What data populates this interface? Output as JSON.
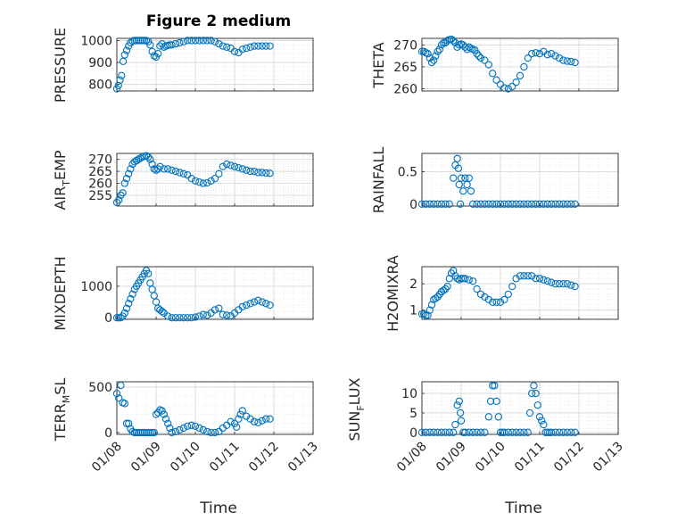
{
  "chart_data": [
    {
      "type": "scatter",
      "id": "pressure",
      "title": "Figure 2 medium",
      "ylabel": "PRESSURE",
      "xlim": [
        0,
        5
      ],
      "ylim": [
        770,
        1010
      ],
      "yticks": [
        800,
        900,
        1000
      ],
      "ytick_labels": [
        "800",
        "900",
        "1000"
      ],
      "xtick_labels": [
        "",
        "",
        "",
        "",
        "",
        ""
      ],
      "x": [
        0.0,
        0.04,
        0.08,
        0.12,
        0.16,
        0.2,
        0.25,
        0.3,
        0.35,
        0.4,
        0.45,
        0.5,
        0.55,
        0.6,
        0.65,
        0.7,
        0.75,
        0.8,
        0.85,
        0.9,
        0.95,
        1.0,
        1.05,
        1.1,
        1.15,
        1.2,
        1.25,
        1.3,
        1.35,
        1.4,
        1.5,
        1.6,
        1.7,
        1.8,
        1.9,
        2.0,
        2.1,
        2.2,
        2.3,
        2.4,
        2.5,
        2.6,
        2.7,
        2.8,
        2.9,
        3.0,
        3.1,
        3.2,
        3.3,
        3.4,
        3.5,
        3.6,
        3.7,
        3.8,
        3.9
      ],
      "y": [
        780,
        795,
        820,
        840,
        905,
        935,
        955,
        975,
        990,
        998,
        1000,
        1000,
        1000,
        1000,
        1000,
        1000,
        1000,
        995,
        980,
        950,
        930,
        925,
        940,
        975,
        985,
        970,
        975,
        978,
        980,
        980,
        985,
        990,
        995,
        1000,
        1000,
        1000,
        1000,
        1000,
        1000,
        1000,
        995,
        985,
        975,
        970,
        965,
        950,
        945,
        960,
        965,
        970,
        975,
        975,
        975,
        975,
        975
      ]
    },
    {
      "type": "scatter",
      "id": "theta",
      "title": "",
      "ylabel": "THETA",
      "xlim": [
        0,
        5
      ],
      "ylim": [
        259.5,
        271.5
      ],
      "yticks": [
        260,
        265,
        270
      ],
      "ytick_labels": [
        "260",
        "265",
        "270"
      ],
      "xtick_labels": [
        "",
        "",
        "",
        "",
        "",
        ""
      ],
      "x": [
        0.0,
        0.05,
        0.1,
        0.15,
        0.2,
        0.25,
        0.3,
        0.35,
        0.4,
        0.45,
        0.5,
        0.55,
        0.6,
        0.65,
        0.7,
        0.75,
        0.8,
        0.85,
        0.9,
        0.95,
        1.0,
        1.05,
        1.1,
        1.15,
        1.2,
        1.25,
        1.3,
        1.35,
        1.4,
        1.45,
        1.5,
        1.6,
        1.7,
        1.8,
        1.9,
        2.0,
        2.1,
        2.2,
        2.3,
        2.4,
        2.5,
        2.6,
        2.7,
        2.8,
        2.9,
        3.0,
        3.1,
        3.2,
        3.3,
        3.4,
        3.5,
        3.6,
        3.7,
        3.8,
        3.9
      ],
      "y": [
        268.5,
        268.5,
        268.2,
        268.0,
        267.0,
        266.0,
        266.5,
        267.5,
        268.5,
        269.0,
        270.0,
        270.5,
        270.5,
        271.0,
        271.2,
        271.3,
        271.0,
        270.5,
        269.5,
        270.0,
        270.2,
        270.0,
        269.5,
        269.0,
        269.5,
        269.2,
        269.0,
        268.8,
        268.0,
        267.5,
        267.0,
        266.5,
        265.5,
        263.5,
        262.0,
        261.0,
        260.2,
        260.0,
        260.5,
        261.5,
        263.0,
        265.0,
        267.0,
        268.0,
        268.2,
        268.0,
        268.5,
        267.8,
        268.0,
        267.5,
        267.0,
        266.5,
        266.3,
        266.2,
        266.0
      ]
    },
    {
      "type": "scatter",
      "id": "air_temp",
      "title": "",
      "ylabel": "AIR_TEMP",
      "xlim": [
        0,
        5
      ],
      "ylim": [
        250.5,
        272.5
      ],
      "yticks": [
        255,
        260,
        265,
        270
      ],
      "ytick_labels": [
        "255",
        "260",
        "265",
        "270"
      ],
      "xtick_labels": [
        "",
        "",
        "",
        "",
        "",
        ""
      ],
      "x": [
        0.0,
        0.05,
        0.1,
        0.15,
        0.2,
        0.25,
        0.3,
        0.35,
        0.4,
        0.45,
        0.5,
        0.55,
        0.6,
        0.65,
        0.7,
        0.75,
        0.8,
        0.85,
        0.9,
        0.95,
        1.0,
        1.05,
        1.1,
        1.2,
        1.3,
        1.4,
        1.5,
        1.6,
        1.7,
        1.8,
        1.9,
        2.0,
        2.1,
        2.2,
        2.3,
        2.4,
        2.5,
        2.6,
        2.7,
        2.8,
        2.9,
        3.0,
        3.1,
        3.2,
        3.3,
        3.4,
        3.5,
        3.6,
        3.7,
        3.8,
        3.9
      ],
      "y": [
        252,
        253,
        255,
        256,
        260,
        262,
        264,
        266,
        268,
        269,
        269.5,
        270,
        270.5,
        271,
        271.3,
        271.5,
        271,
        270,
        268,
        266,
        265.5,
        266,
        267,
        266,
        266,
        265.5,
        265,
        264.5,
        264,
        263.5,
        262,
        261,
        260.5,
        260,
        260.2,
        261,
        262,
        264,
        267,
        268,
        267.5,
        267,
        266.5,
        266,
        265.5,
        265,
        265,
        264.5,
        264.5,
        264.3,
        264.2
      ]
    },
    {
      "type": "scatter",
      "id": "rainfall",
      "title": "",
      "ylabel": "RAINFALL",
      "xlim": [
        0,
        5
      ],
      "ylim": [
        -0.03,
        0.78
      ],
      "yticks": [
        0,
        0.5
      ],
      "ytick_labels": [
        "0",
        "0.5"
      ],
      "xtick_labels": [
        "",
        "",
        "",
        "",
        "",
        ""
      ],
      "x": [
        0.0,
        0.1,
        0.2,
        0.3,
        0.4,
        0.5,
        0.6,
        0.7,
        0.8,
        0.85,
        0.9,
        0.93,
        0.95,
        0.98,
        1.0,
        1.05,
        1.1,
        1.15,
        1.2,
        1.25,
        1.3,
        1.4,
        1.5,
        1.6,
        1.7,
        1.8,
        1.9,
        2.0,
        2.1,
        2.2,
        2.3,
        2.4,
        2.5,
        2.6,
        2.7,
        2.8,
        2.9,
        3.0,
        3.1,
        3.2,
        3.3,
        3.4,
        3.5,
        3.6,
        3.7,
        3.8,
        3.9
      ],
      "y": [
        0,
        0,
        0,
        0,
        0,
        0,
        0,
        0,
        0.4,
        0.6,
        0.7,
        0.55,
        0.3,
        0,
        0.4,
        0.2,
        0.4,
        0.3,
        0.4,
        0.2,
        0,
        0,
        0,
        0,
        0,
        0,
        0,
        0,
        0,
        0,
        0,
        0,
        0,
        0,
        0,
        0,
        0,
        0,
        0,
        0,
        0,
        0,
        0,
        0,
        0,
        0,
        0
      ]
    },
    {
      "type": "scatter",
      "id": "mixdepth",
      "title": "",
      "ylabel": "MIXDEPTH",
      "xlim": [
        0,
        5
      ],
      "ylim": [
        -50,
        1620
      ],
      "yticks": [
        0,
        1000
      ],
      "ytick_labels": [
        "0",
        "1000"
      ],
      "xtick_labels": [
        "",
        "",
        "",
        "",
        "",
        ""
      ],
      "x": [
        0.0,
        0.05,
        0.1,
        0.15,
        0.2,
        0.25,
        0.3,
        0.35,
        0.4,
        0.45,
        0.5,
        0.55,
        0.6,
        0.65,
        0.7,
        0.75,
        0.8,
        0.85,
        0.9,
        0.95,
        1.0,
        1.05,
        1.1,
        1.15,
        1.2,
        1.3,
        1.4,
        1.5,
        1.6,
        1.7,
        1.8,
        1.9,
        2.0,
        2.1,
        2.2,
        2.3,
        2.4,
        2.5,
        2.6,
        2.7,
        2.8,
        2.9,
        3.0,
        3.1,
        3.2,
        3.3,
        3.4,
        3.5,
        3.6,
        3.7,
        3.8,
        3.9
      ],
      "y": [
        0,
        0,
        0,
        50,
        150,
        300,
        450,
        600,
        750,
        900,
        1000,
        1100,
        1200,
        1300,
        1400,
        1500,
        1400,
        1100,
        900,
        700,
        500,
        300,
        250,
        200,
        150,
        50,
        0,
        0,
        0,
        0,
        0,
        0,
        20,
        50,
        100,
        80,
        150,
        250,
        300,
        100,
        80,
        60,
        150,
        250,
        350,
        400,
        450,
        500,
        550,
        500,
        450,
        400
      ]
    },
    {
      "type": "scatter",
      "id": "h2omixra",
      "title": "",
      "ylabel": "H2OMIXRA",
      "xlim": [
        0,
        5
      ],
      "ylim": [
        0.65,
        2.65
      ],
      "yticks": [
        1,
        2
      ],
      "ytick_labels": [
        "1",
        "2"
      ],
      "xtick_labels": [
        "",
        "",
        "",
        "",
        "",
        ""
      ],
      "x": [
        0.0,
        0.05,
        0.1,
        0.15,
        0.2,
        0.25,
        0.3,
        0.35,
        0.4,
        0.45,
        0.5,
        0.55,
        0.6,
        0.65,
        0.7,
        0.75,
        0.8,
        0.85,
        0.9,
        0.95,
        1.0,
        1.05,
        1.1,
        1.2,
        1.3,
        1.4,
        1.5,
        1.6,
        1.7,
        1.8,
        1.9,
        2.0,
        2.1,
        2.2,
        2.3,
        2.4,
        2.5,
        2.6,
        2.7,
        2.8,
        2.9,
        3.0,
        3.1,
        3.2,
        3.3,
        3.4,
        3.5,
        3.6,
        3.7,
        3.8,
        3.9
      ],
      "y": [
        0.85,
        0.85,
        0.8,
        0.8,
        1.0,
        1.2,
        1.4,
        1.45,
        1.5,
        1.6,
        1.7,
        1.75,
        1.8,
        1.9,
        2.2,
        2.4,
        2.5,
        2.3,
        2.2,
        2.15,
        2.2,
        2.2,
        2.2,
        2.15,
        2.1,
        1.8,
        1.6,
        1.5,
        1.4,
        1.3,
        1.3,
        1.3,
        1.4,
        1.6,
        1.9,
        2.2,
        2.3,
        2.3,
        2.3,
        2.3,
        2.2,
        2.2,
        2.15,
        2.1,
        2.05,
        2.0,
        2.0,
        2.0,
        2.0,
        1.95,
        1.9
      ]
    },
    {
      "type": "scatter",
      "id": "terr_msl",
      "title": "",
      "ylabel": "TERR_MSL",
      "xlim": [
        0,
        5
      ],
      "ylim": [
        -20,
        560
      ],
      "yticks": [
        0,
        500
      ],
      "ytick_labels": [
        "0",
        "500"
      ],
      "xtick_labels": [
        "01/08",
        "01/09",
        "01/10",
        "01/11",
        "01/12",
        "01/13"
      ],
      "xlabel": "Time",
      "x": [
        0.0,
        0.05,
        0.1,
        0.15,
        0.2,
        0.25,
        0.3,
        0.35,
        0.4,
        0.45,
        0.5,
        0.55,
        0.6,
        0.65,
        0.7,
        0.75,
        0.8,
        0.85,
        0.9,
        0.95,
        1.0,
        1.05,
        1.1,
        1.15,
        1.2,
        1.25,
        1.3,
        1.35,
        1.4,
        1.5,
        1.6,
        1.7,
        1.8,
        1.9,
        2.0,
        2.1,
        2.2,
        2.3,
        2.4,
        2.5,
        2.6,
        2.7,
        2.8,
        2.9,
        3.0,
        3.05,
        3.1,
        3.15,
        3.2,
        3.3,
        3.4,
        3.5,
        3.6,
        3.7,
        3.8,
        3.9
      ],
      "y": [
        430,
        380,
        520,
        330,
        320,
        100,
        100,
        40,
        10,
        0,
        0,
        0,
        0,
        0,
        0,
        0,
        0,
        0,
        0,
        0,
        200,
        220,
        250,
        240,
        200,
        150,
        100,
        50,
        0,
        10,
        30,
        50,
        70,
        80,
        70,
        50,
        30,
        10,
        0,
        0,
        10,
        50,
        80,
        120,
        100,
        60,
        150,
        200,
        240,
        180,
        150,
        120,
        110,
        130,
        150,
        150
      ]
    },
    {
      "type": "scatter",
      "id": "sun_flux",
      "title": "",
      "ylabel": "SUN_FLUX",
      "xlim": [
        0,
        5
      ],
      "ylim": [
        -0.5,
        13
      ],
      "yticks": [
        0,
        5,
        10
      ],
      "ytick_labels": [
        "0",
        "5",
        "10"
      ],
      "xtick_labels": [
        "01/08",
        "01/09",
        "01/10",
        "01/11",
        "01/12",
        "01/13"
      ],
      "xlabel": "Time",
      "x": [
        0.0,
        0.1,
        0.2,
        0.3,
        0.4,
        0.5,
        0.6,
        0.7,
        0.8,
        0.85,
        0.9,
        0.95,
        0.98,
        1.0,
        1.05,
        1.1,
        1.2,
        1.3,
        1.4,
        1.5,
        1.6,
        1.7,
        1.75,
        1.8,
        1.85,
        1.9,
        1.95,
        2.0,
        2.05,
        2.1,
        2.2,
        2.3,
        2.4,
        2.5,
        2.6,
        2.7,
        2.75,
        2.8,
        2.85,
        2.9,
        2.95,
        3.0,
        3.05,
        3.1,
        3.15,
        3.2,
        3.25,
        3.3,
        3.4,
        3.5,
        3.6,
        3.7,
        3.8,
        3.9
      ],
      "y": [
        0,
        0,
        0,
        0,
        0,
        0,
        0,
        0,
        0,
        2,
        7,
        8,
        5,
        3,
        0,
        0,
        0,
        0,
        0,
        0,
        0,
        4,
        8,
        12,
        12,
        8,
        4,
        0,
        0,
        0,
        0,
        0,
        0,
        0,
        0,
        0,
        5,
        10,
        12,
        10,
        7,
        4,
        3,
        2,
        0,
        0,
        0,
        0,
        0,
        0,
        0,
        0,
        0,
        0
      ]
    }
  ]
}
